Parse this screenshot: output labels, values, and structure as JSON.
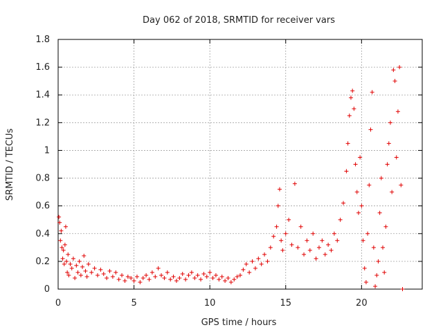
{
  "chart_data": {
    "type": "scatter",
    "title": "Day 062 of 2018, SRMTID for receiver vars",
    "xlabel": "GPS time / hours",
    "ylabel": "SRMTID / TECUs",
    "xlim": [
      0,
      24
    ],
    "ylim": [
      0,
      1.8
    ],
    "xticks": [
      0,
      5,
      10,
      15,
      20
    ],
    "xtick_labels": [
      "0",
      "5",
      "10",
      "15",
      "20"
    ],
    "yticks": [
      0,
      0.2,
      0.4,
      0.6,
      0.8,
      1.0,
      1.2,
      1.4,
      1.6,
      1.8
    ],
    "ytick_labels": [
      "0",
      "0.2",
      "0.4",
      "0.6",
      "0.8",
      "1",
      "1.2",
      "1.4",
      "1.6",
      "1.8"
    ],
    "grid": true,
    "marker": "+",
    "color": "#e00000",
    "series": [
      {
        "name": "SRMTID",
        "points": [
          [
            0.05,
            0.52
          ],
          [
            0.1,
            0.48
          ],
          [
            0.15,
            0.35
          ],
          [
            0.2,
            0.42
          ],
          [
            0.25,
            0.3
          ],
          [
            0.3,
            0.22
          ],
          [
            0.35,
            0.28
          ],
          [
            0.4,
            0.18
          ],
          [
            0.45,
            0.32
          ],
          [
            0.5,
            0.45
          ],
          [
            0.55,
            0.2
          ],
          [
            0.6,
            0.12
          ],
          [
            0.65,
            0.25
          ],
          [
            0.7,
            0.1
          ],
          [
            0.8,
            0.18
          ],
          [
            0.9,
            0.15
          ],
          [
            1.0,
            0.22
          ],
          [
            1.1,
            0.08
          ],
          [
            1.2,
            0.17
          ],
          [
            1.3,
            0.12
          ],
          [
            1.4,
            0.2
          ],
          [
            1.5,
            0.1
          ],
          [
            1.6,
            0.16
          ],
          [
            1.7,
            0.24
          ],
          [
            1.8,
            0.13
          ],
          [
            1.9,
            0.09
          ],
          [
            2.0,
            0.18
          ],
          [
            2.2,
            0.12
          ],
          [
            2.4,
            0.15
          ],
          [
            2.6,
            0.1
          ],
          [
            2.8,
            0.14
          ],
          [
            3.0,
            0.11
          ],
          [
            3.2,
            0.08
          ],
          [
            3.4,
            0.13
          ],
          [
            3.6,
            0.09
          ],
          [
            3.8,
            0.12
          ],
          [
            4.0,
            0.07
          ],
          [
            4.2,
            0.1
          ],
          [
            4.4,
            0.06
          ],
          [
            4.6,
            0.09
          ],
          [
            4.8,
            0.08
          ],
          [
            5.0,
            0.06
          ],
          [
            5.2,
            0.09
          ],
          [
            5.4,
            0.05
          ],
          [
            5.6,
            0.08
          ],
          [
            5.8,
            0.1
          ],
          [
            6.0,
            0.07
          ],
          [
            6.2,
            0.12
          ],
          [
            6.4,
            0.09
          ],
          [
            6.6,
            0.15
          ],
          [
            6.8,
            0.1
          ],
          [
            7.0,
            0.08
          ],
          [
            7.2,
            0.12
          ],
          [
            7.4,
            0.07
          ],
          [
            7.6,
            0.09
          ],
          [
            7.8,
            0.06
          ],
          [
            8.0,
            0.08
          ],
          [
            8.2,
            0.11
          ],
          [
            8.4,
            0.07
          ],
          [
            8.6,
            0.1
          ],
          [
            8.8,
            0.12
          ],
          [
            9.0,
            0.08
          ],
          [
            9.2,
            0.1
          ],
          [
            9.4,
            0.07
          ],
          [
            9.6,
            0.11
          ],
          [
            9.8,
            0.09
          ],
          [
            10.0,
            0.12
          ],
          [
            10.2,
            0.08
          ],
          [
            10.4,
            0.1
          ],
          [
            10.6,
            0.07
          ],
          [
            10.8,
            0.09
          ],
          [
            11.0,
            0.06
          ],
          [
            11.2,
            0.08
          ],
          [
            11.4,
            0.05
          ],
          [
            11.6,
            0.07
          ],
          [
            11.8,
            0.09
          ],
          [
            12.0,
            0.1
          ],
          [
            12.2,
            0.14
          ],
          [
            12.4,
            0.18
          ],
          [
            12.6,
            0.12
          ],
          [
            12.8,
            0.2
          ],
          [
            13.0,
            0.15
          ],
          [
            13.2,
            0.22
          ],
          [
            13.4,
            0.18
          ],
          [
            13.6,
            0.25
          ],
          [
            13.8,
            0.2
          ],
          [
            14.0,
            0.3
          ],
          [
            14.2,
            0.38
          ],
          [
            14.4,
            0.45
          ],
          [
            14.5,
            0.6
          ],
          [
            14.6,
            0.72
          ],
          [
            14.7,
            0.35
          ],
          [
            14.8,
            0.28
          ],
          [
            15.0,
            0.4
          ],
          [
            15.2,
            0.5
          ],
          [
            15.4,
            0.32
          ],
          [
            15.6,
            0.76
          ],
          [
            15.8,
            0.3
          ],
          [
            16.0,
            0.45
          ],
          [
            16.2,
            0.25
          ],
          [
            16.4,
            0.35
          ],
          [
            16.6,
            0.28
          ],
          [
            16.8,
            0.4
          ],
          [
            17.0,
            0.22
          ],
          [
            17.2,
            0.3
          ],
          [
            17.4,
            0.35
          ],
          [
            17.6,
            0.25
          ],
          [
            17.8,
            0.32
          ],
          [
            18.0,
            0.28
          ],
          [
            18.2,
            0.4
          ],
          [
            18.4,
            0.35
          ],
          [
            18.6,
            0.5
          ],
          [
            18.8,
            0.62
          ],
          [
            19.0,
            0.85
          ],
          [
            19.1,
            1.05
          ],
          [
            19.2,
            1.25
          ],
          [
            19.3,
            1.38
          ],
          [
            19.4,
            1.43
          ],
          [
            19.5,
            1.3
          ],
          [
            19.6,
            0.9
          ],
          [
            19.7,
            0.7
          ],
          [
            19.8,
            0.55
          ],
          [
            19.9,
            0.95
          ],
          [
            20.0,
            0.6
          ],
          [
            20.1,
            0.35
          ],
          [
            20.2,
            0.15
          ],
          [
            20.3,
            0.05
          ],
          [
            20.4,
            0.4
          ],
          [
            20.5,
            0.75
          ],
          [
            20.6,
            1.15
          ],
          [
            20.7,
            1.42
          ],
          [
            20.8,
            0.3
          ],
          [
            20.9,
            0.02
          ],
          [
            21.0,
            0.1
          ],
          [
            21.1,
            0.2
          ],
          [
            21.2,
            0.55
          ],
          [
            21.3,
            0.8
          ],
          [
            21.4,
            0.3
          ],
          [
            21.5,
            0.12
          ],
          [
            21.6,
            0.45
          ],
          [
            21.7,
            0.9
          ],
          [
            21.8,
            1.05
          ],
          [
            21.9,
            1.2
          ],
          [
            22.0,
            0.7
          ],
          [
            22.1,
            1.58
          ],
          [
            22.2,
            1.5
          ],
          [
            22.3,
            0.95
          ],
          [
            22.4,
            1.28
          ],
          [
            22.5,
            1.6
          ],
          [
            22.6,
            0.75
          ],
          [
            22.7,
            0.0
          ]
        ]
      }
    ]
  }
}
